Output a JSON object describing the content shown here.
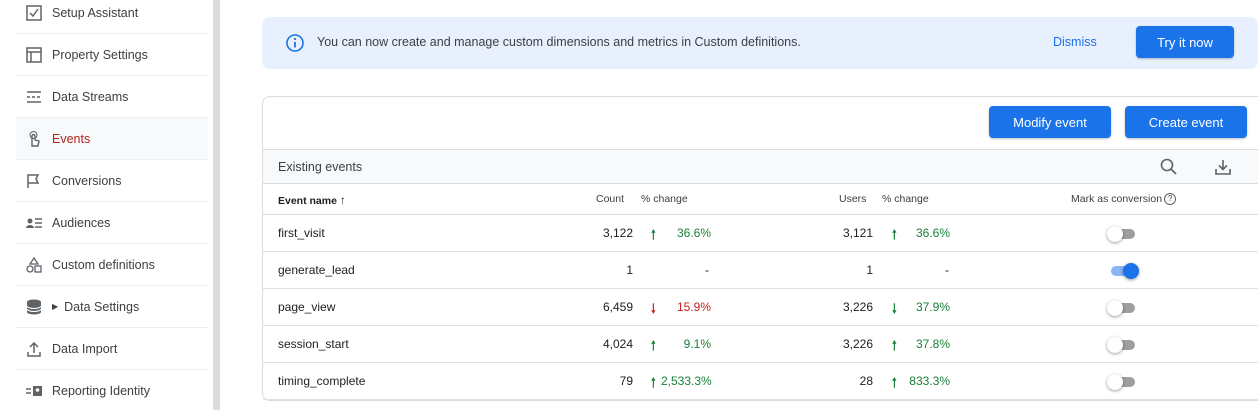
{
  "sidebar": {
    "items": [
      {
        "label": "Setup Assistant",
        "icon": "checkbox-icon"
      },
      {
        "label": "Property Settings",
        "icon": "layout-icon"
      },
      {
        "label": "Data Streams",
        "icon": "streams-icon"
      },
      {
        "label": "Events",
        "icon": "touch-icon"
      },
      {
        "label": "Conversions",
        "icon": "flag-icon"
      },
      {
        "label": "Audiences",
        "icon": "audience-icon"
      },
      {
        "label": "Custom definitions",
        "icon": "shapes-icon"
      },
      {
        "label": "Data Settings",
        "icon": "database-icon"
      },
      {
        "label": "Data Import",
        "icon": "upload-icon"
      },
      {
        "label": "Reporting Identity",
        "icon": "identity-icon"
      }
    ],
    "active_index": 3
  },
  "banner": {
    "message": "You can now create and manage custom dimensions and metrics in Custom definitions.",
    "dismiss_label": "Dismiss",
    "try_label": "Try it now"
  },
  "toolbar": {
    "modify_label": "Modify event",
    "create_label": "Create event"
  },
  "section": {
    "title": "Existing events"
  },
  "table": {
    "headers": {
      "event_name": "Event name",
      "count": "Count",
      "count_change": "% change",
      "users": "Users",
      "users_change": "% change",
      "mark_conversion": "Mark as conversion"
    },
    "rows": [
      {
        "name": "first_visit",
        "count": "3,122",
        "count_change": "36.6%",
        "count_dir": "up",
        "users": "3,121",
        "users_change": "36.6%",
        "users_dir": "up",
        "conversion": false
      },
      {
        "name": "generate_lead",
        "count": "1",
        "count_change": "-",
        "count_dir": "none",
        "users": "1",
        "users_change": "-",
        "users_dir": "none",
        "conversion": true
      },
      {
        "name": "page_view",
        "count": "6,459",
        "count_change": "15.9%",
        "count_dir": "down-red",
        "users": "3,226",
        "users_change": "37.9%",
        "users_dir": "down-green",
        "conversion": false
      },
      {
        "name": "session_start",
        "count": "4,024",
        "count_change": "9.1%",
        "count_dir": "up",
        "users": "3,226",
        "users_change": "37.8%",
        "users_dir": "up",
        "conversion": false
      },
      {
        "name": "timing_complete",
        "count": "79",
        "count_change": "2,533.3%",
        "count_dir": "up",
        "users": "28",
        "users_change": "833.3%",
        "users_dir": "up",
        "conversion": false
      }
    ]
  },
  "colors": {
    "accent": "#1a73e8",
    "active_nav": "#b3261e",
    "positive": "#188038",
    "negative": "#c5221f",
    "banner_bg": "#e8f0fe"
  }
}
